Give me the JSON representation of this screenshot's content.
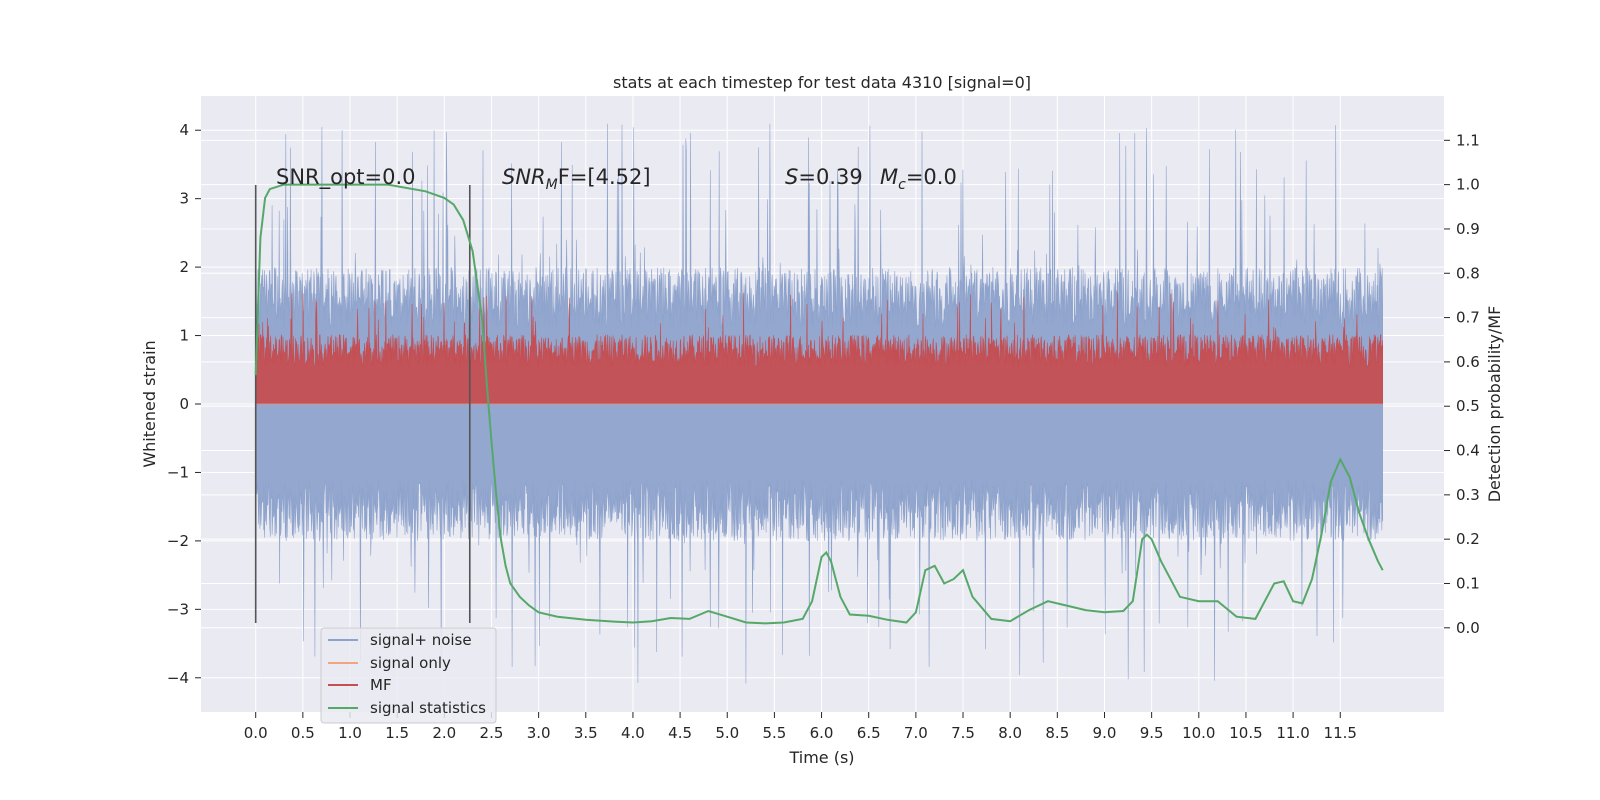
{
  "chart_data": {
    "type": "line",
    "title": "stats at each timestep for test data 4310 [signal=0]",
    "xlabel": "Time (s)",
    "ylabel": "Whitened strain",
    "y2label": "Detection probability/MF",
    "xlim": [
      -0.58,
      12.6
    ],
    "ylim": [
      -4.5,
      4.5
    ],
    "y2lim": [
      -0.19,
      1.2
    ],
    "x_ticks": [
      0.0,
      0.5,
      1.0,
      1.5,
      2.0,
      2.5,
      3.0,
      3.5,
      4.0,
      4.5,
      5.0,
      5.5,
      6.0,
      6.5,
      7.0,
      7.5,
      8.0,
      8.5,
      9.0,
      9.5,
      10.0,
      10.5,
      11.0,
      11.5
    ],
    "x_tick_labels": [
      "0.0",
      "0.5",
      "1.0",
      "1.5",
      "2.0",
      "2.5",
      "3.0",
      "3.5",
      "4.0",
      "4.5",
      "5.0",
      "5.5",
      "6.0",
      "6.5",
      "7.0",
      "7.5",
      "8.0",
      "8.5",
      "9.0",
      "9.5",
      "10.0",
      "10.5",
      "11.0",
      "11.5"
    ],
    "y_ticks": [
      4,
      3,
      2,
      1,
      0,
      -1,
      -2,
      -3,
      -4
    ],
    "y_tick_labels": [
      "4",
      "3",
      "2",
      "1",
      "0",
      "−1",
      "−2",
      "−3",
      "−4"
    ],
    "y2_ticks": [
      1.1,
      1.0,
      0.9,
      0.8,
      0.7,
      0.6,
      0.5,
      0.4,
      0.3,
      0.2,
      0.1,
      0.0
    ],
    "y2_tick_labels": [
      "1.1",
      "1.0",
      "0.9",
      "0.8",
      "0.7",
      "0.6",
      "0.5",
      "0.4",
      "0.3",
      "0.2",
      "0.1",
      "0.0"
    ],
    "grid": true,
    "legend_placement": "lower-left",
    "time_range": [
      0.0,
      11.95
    ],
    "noise_envelope": {
      "upper_typical": 2.0,
      "upper_peak": 4.1,
      "lower_typical": -2.0,
      "lower_peak": -4.1
    },
    "mf_range": [
      0.0,
      1.0
    ],
    "vertical_markers": [
      {
        "x": 0.0,
        "ymin": -3.2,
        "ymax": 3.2
      },
      {
        "x": 2.27,
        "ymin": -3.2,
        "ymax": 3.2
      }
    ],
    "annotations": {
      "snr_opt": "SNR_opt=0.0",
      "snr_mf_base": "SNR",
      "snr_mf_sub": "M",
      "snr_mf_rest": "F=[4.52]",
      "s_var": "S",
      "s_val": "=0.39",
      "mc_var": "M",
      "mc_sub": "c",
      "mc_val": "=0.0"
    },
    "series": [
      {
        "name": "signal+ noise",
        "color": "#8ea3cc"
      },
      {
        "name": "signal only",
        "color": "#f0a682"
      },
      {
        "name": "MF",
        "color": "#c44e52"
      },
      {
        "name": "signal statistics",
        "color": "#55a868",
        "x": [
          0.0,
          0.05,
          0.1,
          0.15,
          0.3,
          0.6,
          1.0,
          1.4,
          1.8,
          2.0,
          2.1,
          2.2,
          2.3,
          2.4,
          2.45,
          2.5,
          2.55,
          2.6,
          2.65,
          2.7,
          2.8,
          2.9,
          3.0,
          3.2,
          3.5,
          3.8,
          4.0,
          4.2,
          4.4,
          4.6,
          4.8,
          5.0,
          5.2,
          5.4,
          5.6,
          5.8,
          5.9,
          6.0,
          6.05,
          6.1,
          6.2,
          6.3,
          6.5,
          6.7,
          6.9,
          7.0,
          7.1,
          7.2,
          7.3,
          7.4,
          7.5,
          7.6,
          7.8,
          8.0,
          8.2,
          8.4,
          8.6,
          8.8,
          9.0,
          9.2,
          9.3,
          9.4,
          9.45,
          9.5,
          9.6,
          9.8,
          10.0,
          10.2,
          10.4,
          10.6,
          10.8,
          10.9,
          11.0,
          11.1,
          11.2,
          11.3,
          11.4,
          11.5,
          11.6,
          11.7,
          11.8,
          11.9,
          11.95
        ],
        "values": [
          0.57,
          0.88,
          0.97,
          0.99,
          1.0,
          1.0,
          1.0,
          1.0,
          0.985,
          0.97,
          0.955,
          0.92,
          0.85,
          0.7,
          0.55,
          0.42,
          0.3,
          0.2,
          0.14,
          0.1,
          0.07,
          0.05,
          0.035,
          0.025,
          0.018,
          0.014,
          0.012,
          0.015,
          0.022,
          0.02,
          0.038,
          0.025,
          0.012,
          0.01,
          0.012,
          0.02,
          0.06,
          0.16,
          0.17,
          0.15,
          0.07,
          0.03,
          0.027,
          0.018,
          0.012,
          0.035,
          0.13,
          0.14,
          0.1,
          0.11,
          0.13,
          0.07,
          0.02,
          0.015,
          0.04,
          0.06,
          0.05,
          0.04,
          0.035,
          0.038,
          0.06,
          0.2,
          0.21,
          0.2,
          0.15,
          0.07,
          0.06,
          0.06,
          0.025,
          0.02,
          0.1,
          0.105,
          0.06,
          0.055,
          0.11,
          0.21,
          0.33,
          0.38,
          0.34,
          0.26,
          0.2,
          0.15,
          0.13
        ]
      }
    ]
  }
}
